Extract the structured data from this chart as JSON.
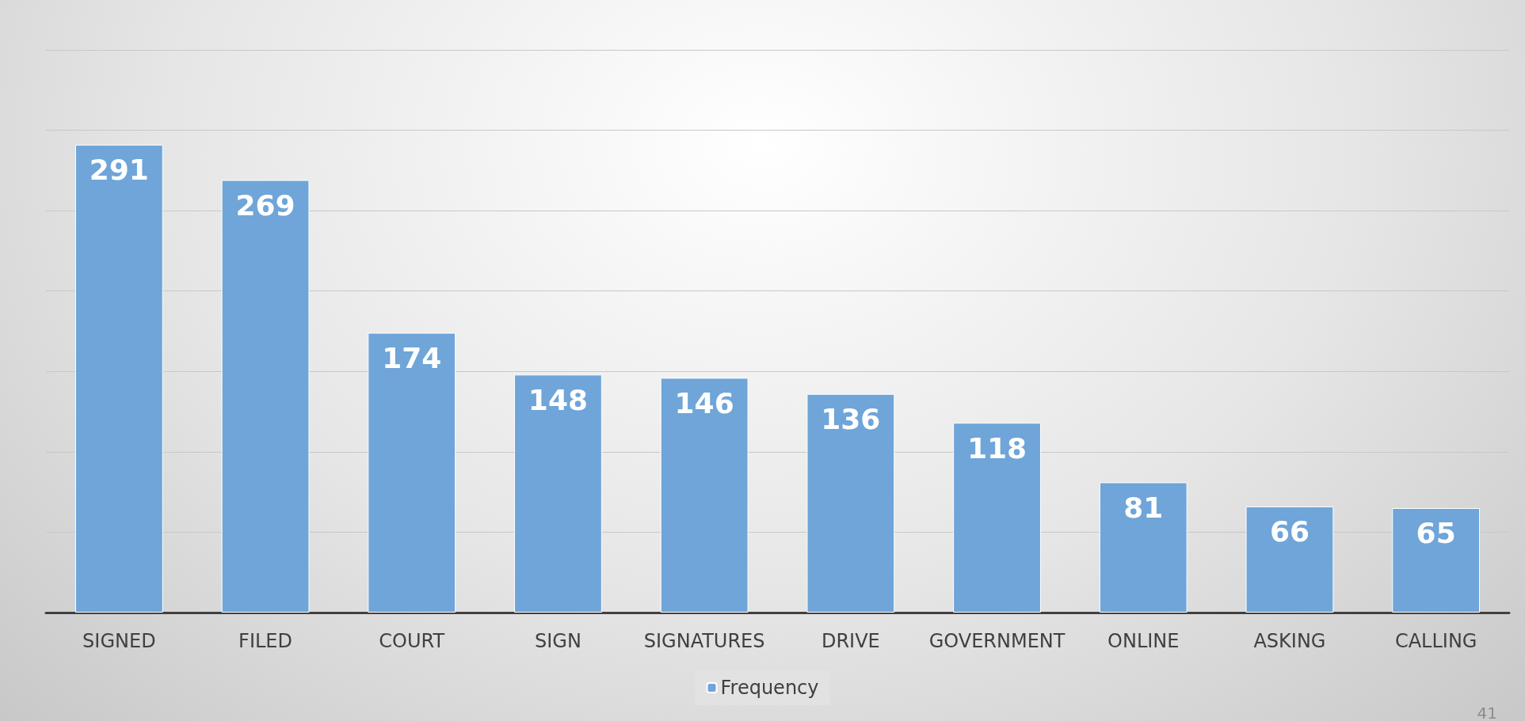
{
  "chart_data": {
    "type": "bar",
    "categories": [
      "SIGNED",
      "FILED",
      "COURT",
      "SIGN",
      "SIGNATURES",
      "DRIVE",
      "GOVERNMENT",
      "ONLINE",
      "ASKING",
      "CALLING"
    ],
    "series": [
      {
        "name": "Frequency",
        "color": "#6fa5d8",
        "values": [
          291,
          269,
          174,
          148,
          146,
          136,
          118,
          81,
          66,
          65
        ]
      }
    ],
    "ylim": [
      0,
      350
    ],
    "yticks": [
      {
        "value": 0,
        "label": null
      },
      {
        "value": 50,
        "label": null
      },
      {
        "value": 100,
        "label": null
      },
      {
        "value": 150,
        "label": null
      },
      {
        "value": 200,
        "label": null
      },
      {
        "value": 250,
        "label": null
      },
      {
        "value": 300,
        "label": null
      },
      {
        "value": 350,
        "label": null
      }
    ],
    "tick_labels": "x",
    "grid": "y",
    "data_labels": true,
    "legend": "bottom",
    "annotations": [
      "41"
    ]
  }
}
